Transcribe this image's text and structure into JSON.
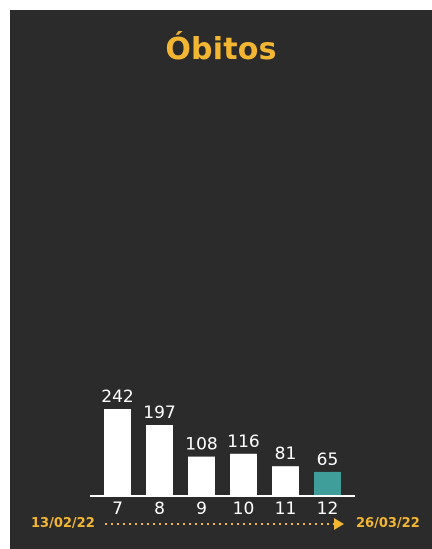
{
  "colors": {
    "background": "#2b2b2b",
    "accent": "#f2b632",
    "bar": "#ffffff",
    "highlight": "#3f9e9a",
    "text": "#ffffff"
  },
  "chart_data": {
    "type": "bar",
    "title": "Óbitos",
    "xlabel": "",
    "ylabel": "",
    "categories": [
      "7",
      "8",
      "9",
      "10",
      "11",
      "12"
    ],
    "values": [
      242,
      197,
      108,
      116,
      81,
      65
    ],
    "highlight_index": 5,
    "ylim": [
      0,
      242
    ],
    "date_start": "13/02/22",
    "date_end": "26/03/22"
  }
}
